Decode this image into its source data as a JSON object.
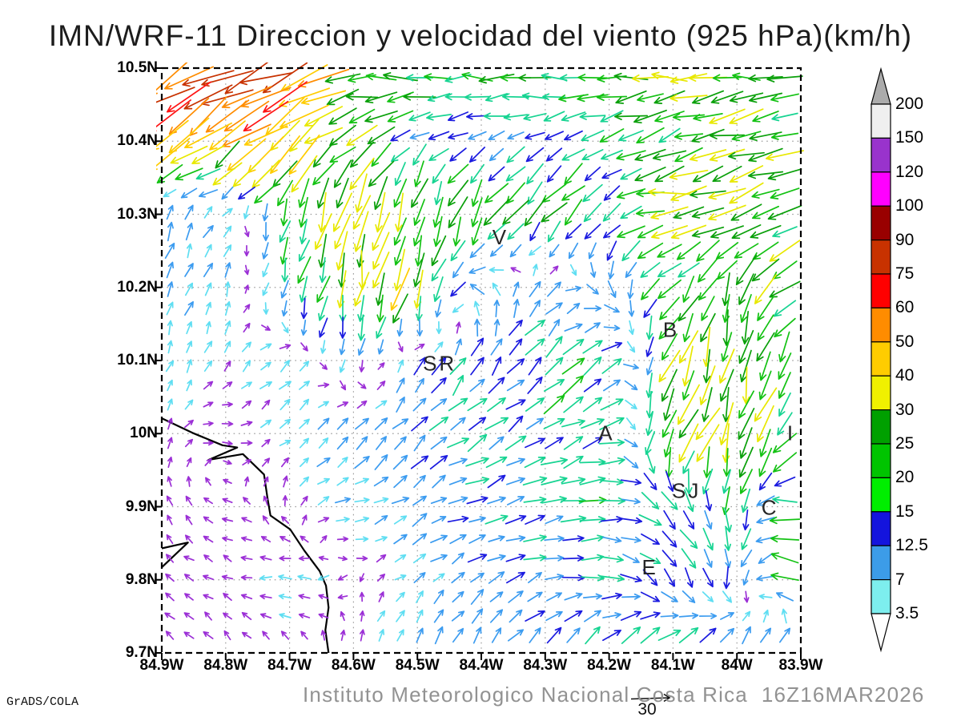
{
  "title": "IMN/WRF-11 Direccion y velocidad del viento (925 hPa)(km/h)",
  "footer": {
    "caption": "Instituto Meteorologico Nacional Costa Rica",
    "timestamp": "16Z16MAR2026",
    "credit": "GrADS/COLA",
    "ref_label": "30"
  },
  "axes": {
    "lat_ticks": [
      "10.5N",
      "10.4N",
      "10.3N",
      "10.2N",
      "10.1N",
      "10N",
      "9.9N",
      "9.8N",
      "9.7N"
    ],
    "lon_ticks": [
      "84.9W",
      "84.8W",
      "84.7W",
      "84.6W",
      "84.5W",
      "84.4W",
      "84.3W",
      "84.2W",
      "84.1W",
      "84W",
      "83.9W"
    ]
  },
  "colorbar": {
    "labels_top_to_bottom": [
      "200",
      "150",
      "120",
      "100",
      "90",
      "75",
      "60",
      "50",
      "40",
      "30",
      "25",
      "20",
      "15",
      "12.5",
      "7",
      "3.5"
    ],
    "block_colors_top_to_bottom": [
      "#efefef",
      "#9933cc",
      "#ff00ff",
      "#990000",
      "#c83200",
      "#ff0000",
      "#ff8c00",
      "#ffcc00",
      "#f0f000",
      "#00a000",
      "#00c400",
      "#00ee00",
      "#1414dd",
      "#3c9ce8",
      "#7deeee"
    ],
    "over_arrow_color": "#ababab",
    "under_arrow_color": "#ffffff"
  },
  "chart_data": {
    "type": "vector_field",
    "units": "km/h",
    "level_hpa": 925,
    "reference_arrow_kmh": 30,
    "lon_ticks_W": [
      84.9,
      84.8,
      84.7,
      84.6,
      84.5,
      84.4,
      84.3,
      84.2,
      84.1,
      84.0,
      83.9
    ],
    "lat_ticks_N": [
      10.5,
      10.4,
      10.3,
      10.2,
      10.1,
      10.0,
      9.9,
      9.8,
      9.7
    ],
    "speed_bins_kmh": [
      3.5,
      7,
      12.5,
      15,
      20,
      25,
      30,
      40,
      50,
      60,
      75,
      90,
      100,
      120,
      150,
      200
    ],
    "arrow_colors_by_bin": [
      "#9b2fd6",
      "#5fdef2",
      "#3c9cf0",
      "#1b1be0",
      "#17d492",
      "#13c213",
      "#0aa00a",
      "#e8e800",
      "#ffcc00",
      "#ff8c00",
      "#ff1414",
      "#c83200",
      "#990000",
      "#ff00ff",
      "#9933cc",
      "#efefef",
      "#ababab"
    ],
    "uv_kmh": [
      [
        [
          -58,
          -40
        ],
        [
          -72,
          -34
        ],
        [
          -58,
          -18
        ],
        [
          -26,
          -1
        ],
        [
          -26,
          0
        ],
        [
          -25,
          0
        ],
        [
          -24,
          1
        ],
        [
          -28,
          -2
        ],
        [
          -26,
          0
        ],
        [
          -24,
          0
        ],
        [
          -23,
          0
        ]
      ],
      [
        [
          -36,
          -30
        ],
        [
          -38,
          -28
        ],
        [
          -32,
          -28
        ],
        [
          -26,
          -12
        ],
        [
          -10,
          -6
        ],
        [
          -9,
          -4
        ],
        [
          -12,
          -5
        ],
        [
          -14,
          -6
        ],
        [
          -20,
          -8
        ],
        [
          -28,
          -7
        ],
        [
          -24,
          -4
        ]
      ],
      [
        [
          4,
          9
        ],
        [
          4,
          4
        ],
        [
          -6,
          -20
        ],
        [
          -8,
          -30
        ],
        [
          -5,
          -26
        ],
        [
          -12,
          -22
        ],
        [
          -15,
          -18
        ],
        [
          -12,
          -12
        ],
        [
          -32,
          -3
        ],
        [
          -25,
          -8
        ],
        [
          -22,
          -10
        ]
      ],
      [
        [
          2,
          6
        ],
        [
          2,
          7
        ],
        [
          -4,
          -14
        ],
        [
          -6,
          -28
        ],
        [
          -8,
          -32
        ],
        [
          -6,
          6
        ],
        [
          8,
          10
        ],
        [
          4,
          -10
        ],
        [
          -14,
          -16
        ],
        [
          -8,
          -22
        ],
        [
          -25,
          -12
        ]
      ],
      [
        [
          2,
          5
        ],
        [
          2,
          3
        ],
        [
          5,
          5
        ],
        [
          -3,
          -7
        ],
        [
          4,
          9
        ],
        [
          8,
          12
        ],
        [
          12,
          12
        ],
        [
          14,
          10
        ],
        [
          -10,
          -25
        ],
        [
          -5,
          -30
        ],
        [
          -8,
          -20
        ]
      ],
      [
        [
          1,
          3
        ],
        [
          2,
          -1
        ],
        [
          4,
          3
        ],
        [
          7,
          6
        ],
        [
          8,
          8
        ],
        [
          12,
          8
        ],
        [
          14,
          8
        ],
        [
          16,
          6
        ],
        [
          -18,
          -28
        ],
        [
          -10,
          -32
        ],
        [
          -15,
          -15
        ]
      ],
      [
        [
          -1,
          2
        ],
        [
          -2,
          1
        ],
        [
          0,
          2
        ],
        [
          7,
          2
        ],
        [
          8,
          5
        ],
        [
          12,
          4
        ],
        [
          15,
          3
        ],
        [
          16,
          0
        ],
        [
          10,
          -10
        ],
        [
          0,
          -16
        ],
        [
          -26,
          8
        ]
      ],
      [
        [
          -2,
          1
        ],
        [
          -2,
          1
        ],
        [
          -5,
          0
        ],
        [
          -1,
          -1
        ],
        [
          4,
          3
        ],
        [
          8,
          6
        ],
        [
          10,
          4
        ],
        [
          14,
          -2
        ],
        [
          8,
          -12
        ],
        [
          0,
          -12
        ],
        [
          -22,
          6
        ]
      ],
      [
        [
          -2,
          2
        ],
        [
          -2,
          2
        ],
        [
          -1,
          2
        ],
        [
          1,
          3
        ],
        [
          3,
          8
        ],
        [
          5,
          10
        ],
        [
          8,
          10
        ],
        [
          10,
          12
        ],
        [
          12,
          14
        ],
        [
          10,
          16
        ],
        [
          12,
          10
        ]
      ]
    ],
    "stations": [
      {
        "label": "V",
        "lon_w": 84.37,
        "lat_n": 10.269
      },
      {
        "label": "B",
        "lon_w": 84.103,
        "lat_n": 10.142
      },
      {
        "label": "SR",
        "lon_w": 84.465,
        "lat_n": 10.096
      },
      {
        "label": "A",
        "lon_w": 84.204,
        "lat_n": 10.001
      },
      {
        "label": "SJ",
        "lon_w": 84.079,
        "lat_n": 9.922
      },
      {
        "label": "C",
        "lon_w": 83.948,
        "lat_n": 9.899
      },
      {
        "label": "E",
        "lon_w": 84.136,
        "lat_n": 9.817
      },
      {
        "label": "I",
        "lon_w": 83.915,
        "lat_n": 10.001
      }
    ],
    "coastline_lonlat": [
      [
        [
          84.9,
          10.021
        ],
        [
          84.852,
          10.001
        ],
        [
          84.805,
          9.984
        ],
        [
          84.782,
          9.981
        ],
        [
          84.827,
          9.964
        ],
        [
          84.773,
          9.972
        ],
        [
          84.74,
          9.944
        ],
        [
          84.735,
          9.914
        ],
        [
          84.73,
          9.888
        ],
        [
          84.699,
          9.869
        ],
        [
          84.677,
          9.84
        ],
        [
          84.653,
          9.812
        ],
        [
          84.643,
          9.792
        ],
        [
          84.639,
          9.762
        ],
        [
          84.644,
          9.731
        ],
        [
          84.639,
          9.7
        ]
      ],
      [
        [
          84.9,
          9.843
        ],
        [
          84.859,
          9.851
        ],
        [
          84.9,
          9.817
        ]
      ]
    ]
  }
}
